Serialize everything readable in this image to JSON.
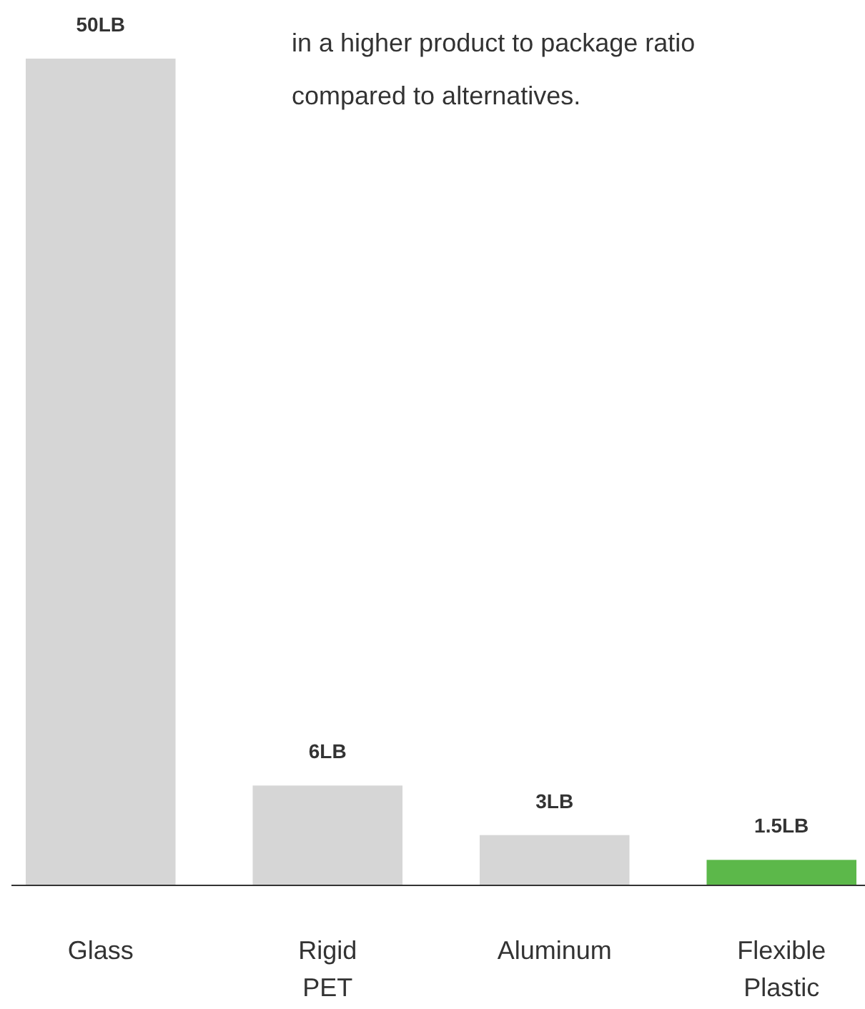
{
  "chart_data": {
    "type": "bar",
    "categories": [
      "Glass",
      "Rigid PET",
      "Aluminum",
      "Flexible Plastic"
    ],
    "values": [
      50,
      6,
      3,
      1.5
    ],
    "colors": [
      "#d6d6d6",
      "#d6d6d6",
      "#d6d6d6",
      "#5cb84a"
    ],
    "value_labels": [
      "50LB",
      "6LB",
      "3LB",
      "1.5LB"
    ],
    "annotations": [
      "in a higher product to package ratio",
      "compared to alternatives."
    ]
  }
}
